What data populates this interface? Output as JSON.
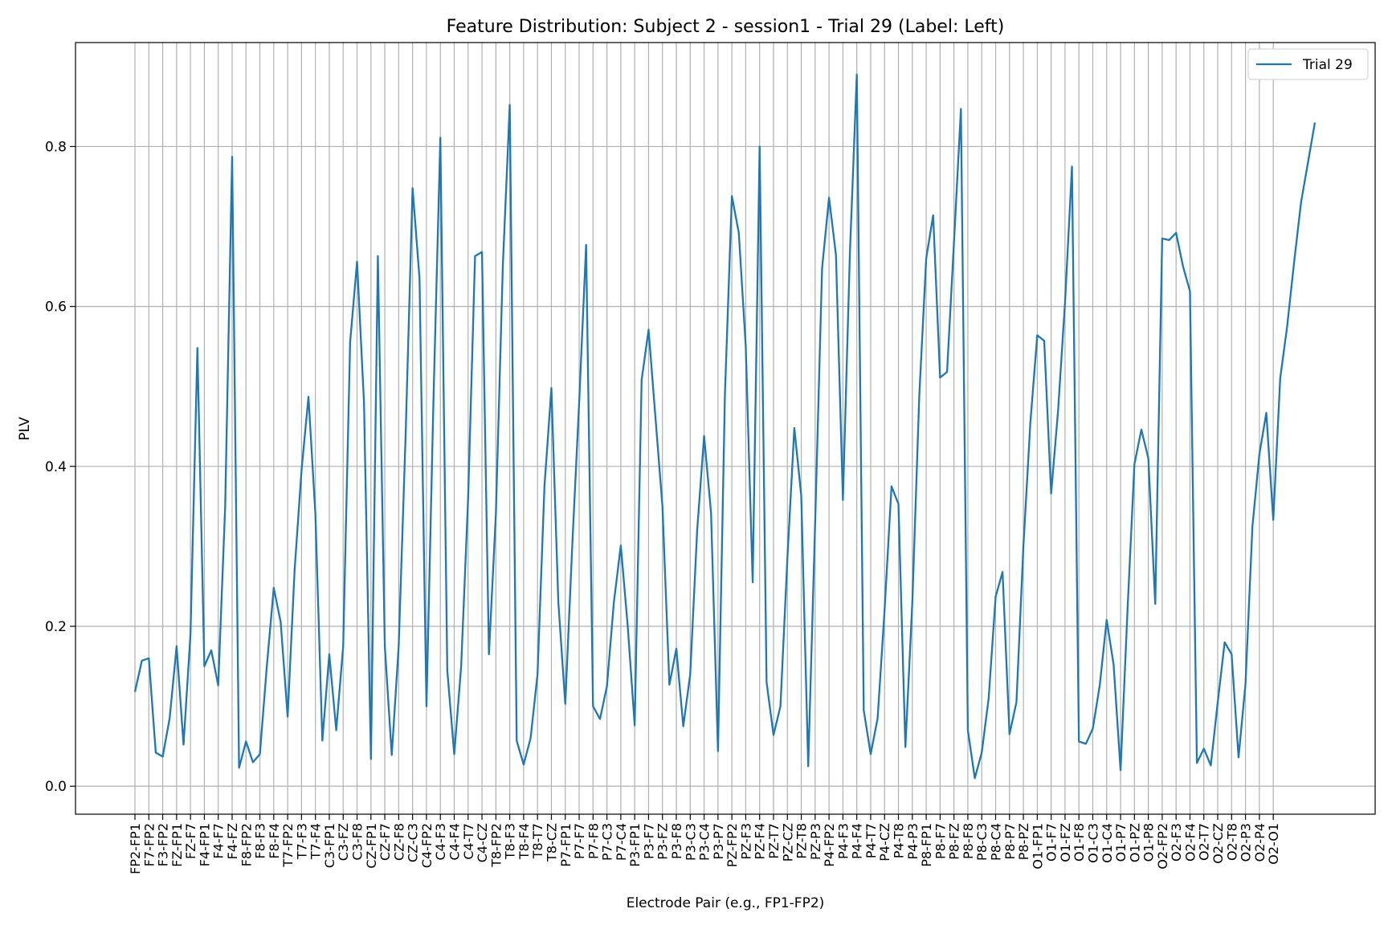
{
  "chart_data": {
    "type": "line",
    "title": "Feature Distribution: Subject 2 - session1 - Trial 29 (Label: Left)",
    "xlabel": "Electrode Pair (e.g., FP1-FP2)",
    "ylabel": "PLV",
    "ylim": [
      -0.035,
      0.93
    ],
    "yticks": [
      0.0,
      0.2,
      0.4,
      0.6,
      0.8
    ],
    "grid": true,
    "legend": "top-right",
    "line_color": "#1f77b4",
    "x_tick_labels": [
      "FP2-FP1",
      "F7-FP2",
      "F3-FP2",
      "FZ-FP1",
      "FZ-F7",
      "F4-FP1",
      "F4-F7",
      "F4-FZ",
      "F8-FP2",
      "F8-F3",
      "F8-F4",
      "T7-FP2",
      "T7-F3",
      "T7-F4",
      "C3-FP1",
      "C3-FZ",
      "C3-F8",
      "CZ-FP1",
      "CZ-F7",
      "CZ-F8",
      "CZ-C3",
      "C4-FP2",
      "C4-F3",
      "C4-F4",
      "C4-T7",
      "C4-CZ",
      "T8-FP2",
      "T8-F3",
      "T8-F4",
      "T8-T7",
      "T8-CZ",
      "P7-FP1",
      "P7-F7",
      "P7-F8",
      "P7-C3",
      "P7-C4",
      "P3-FP1",
      "P3-F7",
      "P3-FZ",
      "P3-F8",
      "P3-C3",
      "P3-C4",
      "P3-P7",
      "PZ-FP2",
      "PZ-F3",
      "PZ-F4",
      "PZ-T7",
      "PZ-CZ",
      "PZ-T8",
      "PZ-P3",
      "P4-FP2",
      "P4-F3",
      "P4-F4",
      "P4-T7",
      "P4-CZ",
      "P4-T8",
      "P4-P3",
      "P8-FP1",
      "P8-F7",
      "P8-FZ",
      "P8-F8",
      "P8-C3",
      "P8-C4",
      "P8-P7",
      "P8-PZ",
      "O1-FP1",
      "O1-F7",
      "O1-FZ",
      "O1-F8",
      "O1-C3",
      "O1-C4",
      "O1-P7",
      "O1-PZ",
      "O1-P8",
      "O2-FP2",
      "O2-F3",
      "O2-F4",
      "O2-T7",
      "O2-CZ",
      "O2-T8",
      "O2-P3",
      "O2-P4",
      "O2-O1"
    ],
    "series": [
      {
        "name": "Trial 29",
        "values": [
          0.118,
          0.157,
          0.16,
          0.042,
          0.037,
          0.085,
          0.175,
          0.052,
          0.19,
          0.548,
          0.15,
          0.17,
          0.126,
          0.35,
          0.787,
          0.023,
          0.056,
          0.03,
          0.04,
          0.15,
          0.248,
          0.205,
          0.087,
          0.27,
          0.395,
          0.487,
          0.34,
          0.057,
          0.165,
          0.07,
          0.175,
          0.555,
          0.656,
          0.48,
          0.034,
          0.663,
          0.175,
          0.039,
          0.175,
          0.44,
          0.748,
          0.635,
          0.1,
          0.48,
          0.811,
          0.145,
          0.04,
          0.15,
          0.36,
          0.663,
          0.668,
          0.165,
          0.34,
          0.65,
          0.852,
          0.057,
          0.027,
          0.06,
          0.14,
          0.375,
          0.498,
          0.23,
          0.103,
          0.3,
          0.48,
          0.677,
          0.1,
          0.084,
          0.125,
          0.23,
          0.301,
          0.2,
          0.076,
          0.508,
          0.571,
          0.46,
          0.35,
          0.127,
          0.172,
          0.075,
          0.14,
          0.32,
          0.438,
          0.342,
          0.044,
          0.49,
          0.738,
          0.692,
          0.55,
          0.255,
          0.8,
          0.13,
          0.064,
          0.1,
          0.285,
          0.448,
          0.363,
          0.025,
          0.33,
          0.648,
          0.736,
          0.664,
          0.358,
          0.665,
          0.89,
          0.095,
          0.04,
          0.085,
          0.22,
          0.375,
          0.353,
          0.049,
          0.23,
          0.488,
          0.66,
          0.714,
          0.511,
          0.518,
          0.68,
          0.847,
          0.07,
          0.01,
          0.042,
          0.11,
          0.237,
          0.268,
          0.065,
          0.105,
          0.3,
          0.454,
          0.564,
          0.557,
          0.366,
          0.47,
          0.605,
          0.775,
          0.056,
          0.053,
          0.072,
          0.126,
          0.208,
          0.152,
          0.02,
          0.22,
          0.403,
          0.446,
          0.41,
          0.228,
          0.685,
          0.683,
          0.692,
          0.65,
          0.619,
          0.029,
          0.047,
          0.026,
          0.105,
          0.18,
          0.165,
          0.036,
          0.128,
          0.325,
          0.415,
          0.467,
          0.333,
          0.51,
          0.575,
          0.655,
          0.73,
          0.78,
          0.83
        ]
      }
    ]
  }
}
